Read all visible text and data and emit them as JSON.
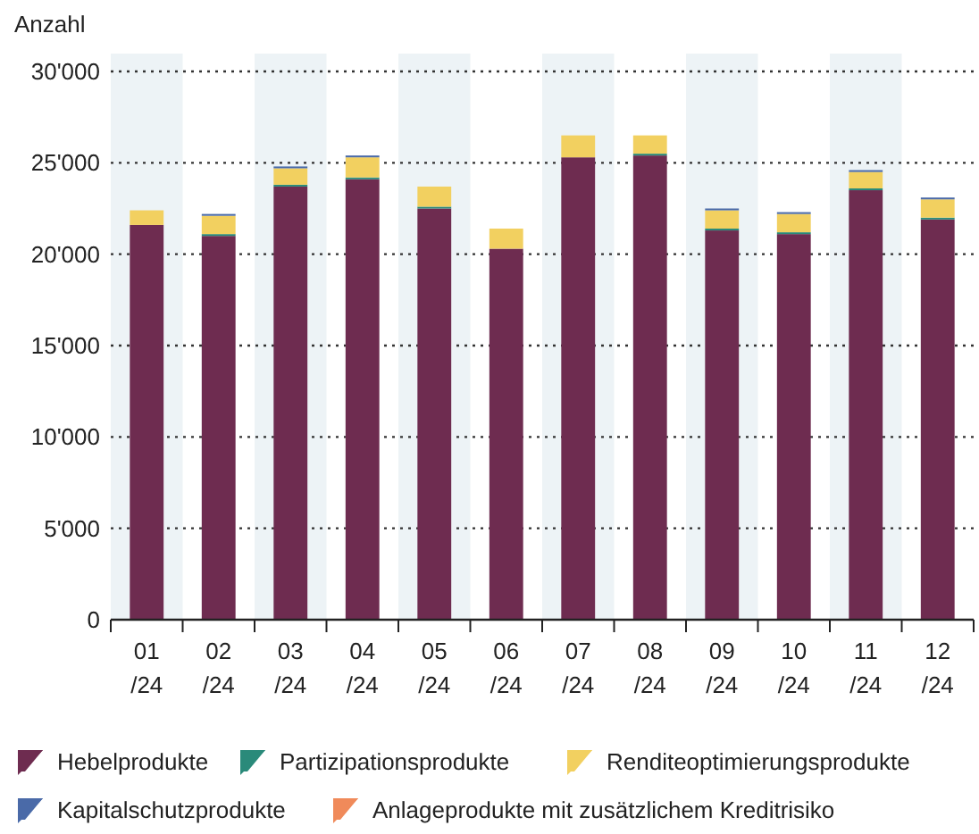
{
  "chart_data": {
    "type": "bar",
    "stacked": true,
    "ylabel": "Anzahl",
    "categories": [
      "01/24",
      "02/24",
      "03/24",
      "04/24",
      "05/24",
      "06/24",
      "07/24",
      "08/24",
      "09/24",
      "10/24",
      "11/24",
      "12/24"
    ],
    "series": [
      {
        "name": "Hebelprodukte",
        "color": "#6e2c50",
        "values": [
          21600,
          21000,
          23700,
          24100,
          22500,
          20300,
          25300,
          25400,
          21300,
          21100,
          23500,
          21900
        ]
      },
      {
        "name": "Partizipationsprodukte",
        "color": "#2a8a7a",
        "values": [
          0,
          100,
          100,
          100,
          100,
          0,
          0,
          100,
          100,
          100,
          100,
          100
        ]
      },
      {
        "name": "Renditeoptimierungsprodukte",
        "color": "#f2d060",
        "values": [
          800,
          1000,
          900,
          1100,
          1100,
          1100,
          1200,
          1000,
          1000,
          1000,
          900,
          1000
        ]
      },
      {
        "name": "Kapitalschutzprodukte",
        "color": "#4a6aa8",
        "values": [
          0,
          100,
          100,
          100,
          0,
          0,
          0,
          0,
          100,
          100,
          100,
          100
        ]
      },
      {
        "name": "Anlageprodukte mit zusätzlichem Kreditrisiko",
        "color": "#f08a5a",
        "values": [
          0,
          0,
          0,
          0,
          0,
          0,
          0,
          0,
          0,
          0,
          0,
          0
        ]
      }
    ],
    "ylim": [
      0,
      30000
    ],
    "yticks": [
      {
        "value": 0,
        "label": "0"
      },
      {
        "value": 5000,
        "label": "5'000"
      },
      {
        "value": 10000,
        "label": "10'000"
      },
      {
        "value": 15000,
        "label": "15'000"
      },
      {
        "value": 20000,
        "label": "20'000"
      },
      {
        "value": 25000,
        "label": "25'000"
      },
      {
        "value": 30000,
        "label": "30'000"
      }
    ],
    "grid": "y",
    "legend": "bottom"
  }
}
